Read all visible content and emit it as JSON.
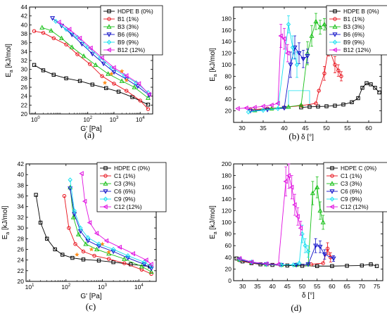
{
  "styles": {
    "HDPE": {
      "color": "#000000",
      "marker": "square"
    },
    "s1": {
      "color": "#e8101a",
      "marker": "circle"
    },
    "s3": {
      "color": "#18c018",
      "marker": "triangle-up"
    },
    "s6": {
      "color": "#1010c8",
      "marker": "triangle-down"
    },
    "s9": {
      "color": "#18e0f0",
      "marker": "diamond"
    },
    "s12": {
      "color": "#e010e0",
      "marker": "triangle-left"
    },
    "highlight": "#ff8c1a"
  },
  "chart_data": [
    {
      "id": "a",
      "panel_label": "(a)",
      "type": "scatter",
      "xscale": "log",
      "xlim": [
        0.6,
        30000
      ],
      "ylim": [
        20,
        44
      ],
      "xlabel": "G' [Pa]",
      "ylabel": "E",
      "ylabel_sub": "a",
      "ylabel_unit": " [kJ/mol]",
      "xticks": [
        1,
        100,
        1000,
        10000
      ],
      "xtick_labels": [
        "10",
        "10",
        "10",
        "10"
      ],
      "xtick_exps": [
        "0",
        "2",
        "3",
        "4"
      ],
      "yticks": [
        20,
        22,
        24,
        26,
        28,
        30,
        32,
        34,
        36,
        38,
        40,
        42,
        44
      ],
      "ytick_labels": [
        "20",
        "22",
        "24",
        "26",
        "28",
        "30",
        "32",
        "34",
        "36",
        "38",
        "40",
        "42",
        "44"
      ],
      "legend_pos": "top-right",
      "series": [
        {
          "name": "HDPE B (0%)",
          "style": "HDPE",
          "x": [
            0.9,
            2,
            5,
            15,
            50,
            150,
            500,
            1500,
            5000,
            20000
          ],
          "y": [
            31,
            29.8,
            28.8,
            28,
            27.4,
            26.6,
            25.8,
            25,
            23.8,
            22.1
          ]
        },
        {
          "name": "B1 (1%)",
          "style": "s1",
          "x": [
            0.9,
            2,
            5,
            15,
            40,
            120,
            350,
            1000,
            3000,
            10000,
            20000
          ],
          "y": [
            38.6,
            38.2,
            37,
            35.6,
            33.4,
            31.2,
            28.5,
            26.8,
            25.2,
            23,
            21.1
          ]
        },
        {
          "name": "B3 (3%)",
          "style": "s3",
          "x": [
            1.8,
            4,
            10,
            25,
            70,
            200,
            600,
            2000,
            6000,
            20000
          ],
          "y": [
            39.4,
            38.7,
            37,
            35,
            33,
            31,
            29,
            27.4,
            26,
            23.6
          ]
        },
        {
          "name": "B6 (6%)",
          "style": "s6",
          "x": [
            4.5,
            10,
            25,
            60,
            150,
            400,
            1000,
            3000,
            8000,
            22000
          ],
          "y": [
            41.5,
            39.8,
            37.8,
            35.7,
            33.5,
            31.3,
            29.4,
            27.8,
            26.2,
            24.2
          ]
        },
        {
          "name": "B9 (9%)",
          "style": "s9",
          "x": [
            6,
            15,
            40,
            100,
            300,
            800,
            2500,
            7000,
            20000
          ],
          "y": [
            40.8,
            39,
            37.2,
            35,
            32.6,
            30.4,
            28.6,
            27,
            24.8
          ]
        },
        {
          "name": "B12 (12%)",
          "style": "s12",
          "x": [
            8,
            20,
            50,
            130,
            350,
            1000,
            3000,
            9000,
            22000
          ],
          "y": [
            40.6,
            39,
            37,
            34.8,
            32.6,
            30.4,
            28.6,
            26.8,
            24.4
          ]
        }
      ],
      "highlights": {
        "x": [
          450,
          800,
          2000,
          3000
        ],
        "y": [
          27,
          29,
          29.6,
          27.6
        ]
      }
    },
    {
      "id": "b",
      "panel_label": "(b)",
      "type": "scatter",
      "xscale": "linear",
      "xlim": [
        28,
        63
      ],
      "ylim": [
        0,
        200
      ],
      "xlabel": "δ [°]",
      "ylabel": "E",
      "ylabel_sub": "a",
      "ylabel_unit": " [kJ/mol]",
      "xticks": [
        30,
        35,
        40,
        45,
        50,
        55,
        60
      ],
      "xtick_labels": [
        "30",
        "35",
        "40",
        "45",
        "50",
        "55",
        "60"
      ],
      "yticks": [
        20,
        40,
        60,
        80,
        100,
        120,
        140,
        160,
        180
      ],
      "ytick_labels": [
        "20",
        "40",
        "60",
        "80",
        "100",
        "120",
        "140",
        "160",
        "180"
      ],
      "legend_pos": "top-right",
      "series": [
        {
          "name": "HDPE B (0%)",
          "style": "HDPE",
          "x": [
            44,
            46,
            48,
            50,
            52,
            54,
            56,
            57.5,
            58.5,
            59.5,
            60.5,
            61.5,
            62.5
          ],
          "y": [
            26,
            27,
            27.5,
            28,
            29,
            31,
            35,
            42,
            60,
            68,
            66,
            60,
            52
          ],
          "err": [
            0,
            0,
            0,
            0,
            0,
            0,
            0,
            0,
            0,
            0,
            0,
            0,
            0
          ]
        },
        {
          "name": "B1 (1%)",
          "style": "s1",
          "x": [
            32,
            36,
            40,
            44,
            47.5,
            48.2,
            49.5,
            50.5,
            52,
            52.8,
            53.5
          ],
          "y": [
            22,
            24,
            26,
            29,
            33,
            55,
            85,
            130,
            100,
            90,
            80
          ],
          "err": [
            0,
            0,
            0,
            0,
            0,
            0,
            12,
            15,
            14,
            10,
            8
          ]
        },
        {
          "name": "B3 (3%)",
          "style": "s3",
          "x": [
            33,
            37,
            41,
            44,
            45.5,
            46.5,
            47.5,
            48.5,
            49.5,
            50.5
          ],
          "y": [
            21,
            24,
            27,
            30,
            120,
            150,
            175,
            165,
            170,
            150
          ],
          "err": [
            0,
            0,
            0,
            0,
            20,
            18,
            14,
            12,
            10,
            10
          ]
        },
        {
          "name": "B6 (6%)",
          "style": "s6",
          "x": [
            32,
            36,
            40,
            41.5,
            42.5,
            43.5,
            44.5,
            45.5
          ],
          "y": [
            20,
            22,
            25,
            100,
            130,
            120,
            110,
            115
          ],
          "err": [
            0,
            0,
            0,
            22,
            20,
            18,
            15,
            12
          ]
        },
        {
          "name": "B9 (9%)",
          "style": "s9",
          "x": [
            31.5,
            35,
            38.5,
            41,
            42,
            43
          ],
          "y": [
            18,
            21,
            24,
            170,
            130,
            100
          ],
          "err": [
            0,
            0,
            0,
            15,
            20,
            22
          ]
        },
        {
          "name": "B12 (12%)",
          "style": "s12",
          "x": [
            29,
            31,
            33,
            35,
            37,
            38.5,
            39.2,
            40,
            40.8
          ],
          "y": [
            24,
            25,
            26,
            28,
            30,
            33,
            150,
            145,
            120
          ],
          "err": [
            0,
            0,
            0,
            0,
            0,
            0,
            20,
            18,
            15
          ]
        }
      ],
      "connectors": [
        {
          "style": "s9",
          "x": [
            38.5,
            41,
            41,
            46,
            46
          ],
          "y": [
            24,
            24,
            55,
            55,
            30
          ]
        }
      ]
    },
    {
      "id": "c",
      "panel_label": "(c)",
      "type": "scatter",
      "xscale": "log",
      "xlim": [
        8,
        30000
      ],
      "ylim": [
        20,
        42
      ],
      "xlabel": "G' [Pa]",
      "ylabel": "E",
      "ylabel_sub": "a",
      "ylabel_unit": " [kJ/mol]",
      "xticks": [
        10,
        100,
        1000,
        10000
      ],
      "xtick_labels": [
        "10",
        "10",
        "10",
        "10"
      ],
      "xtick_exps": [
        "1",
        "2",
        "3",
        "4"
      ],
      "yticks": [
        20,
        22,
        24,
        26,
        28,
        30,
        32,
        34,
        36,
        38,
        40,
        42
      ],
      "ytick_labels": [
        "20",
        "22",
        "24",
        "26",
        "28",
        "30",
        "32",
        "34",
        "36",
        "38",
        "40",
        "42"
      ],
      "legend_pos": "top-right",
      "series": [
        {
          "name": "HDPE C (0%)",
          "style": "HDPE",
          "x": [
            15,
            20,
            30,
            50,
            80,
            150,
            300,
            800,
            2000,
            6000,
            20000
          ],
          "y": [
            36.2,
            31,
            28,
            26,
            25,
            24.4,
            24.1,
            23.9,
            23.6,
            23.2,
            22.8
          ]
        },
        {
          "name": "C1 (1%)",
          "style": "s1",
          "x": [
            90,
            120,
            180,
            300,
            600,
            1500,
            4000,
            12000,
            22000
          ],
          "y": [
            36,
            30,
            27,
            25.6,
            24.8,
            24.2,
            23.4,
            22.2,
            21.4
          ]
        },
        {
          "name": "C3 (3%)",
          "style": "s3",
          "x": [
            130,
            160,
            220,
            350,
            700,
            1500,
            4000,
            12000,
            22000
          ],
          "y": [
            37.6,
            32,
            28.8,
            27,
            26,
            25.2,
            24.2,
            22.8,
            21.8
          ]
        },
        {
          "name": "C6 (6%)",
          "style": "s6",
          "x": [
            130,
            170,
            250,
            400,
            800,
            2000,
            5000,
            14000,
            22000
          ],
          "y": [
            37.4,
            32.6,
            29.4,
            27.6,
            26.6,
            25.6,
            24.4,
            23.2,
            22.4
          ]
        },
        {
          "name": "C9 (9%)",
          "style": "s9",
          "x": [
            130,
            170,
            250,
            400,
            800,
            2000,
            5000,
            14000,
            22000
          ],
          "y": [
            39,
            33.2,
            30,
            28.2,
            27,
            26,
            24.8,
            23.6,
            22.8
          ]
        },
        {
          "name": "C12 (12%)",
          "style": "s12",
          "x": [
            270,
            330,
            450,
            700,
            1300,
            3000,
            7000,
            16000,
            22000
          ],
          "y": [
            40.2,
            35,
            31,
            29,
            27.6,
            26.4,
            25.2,
            24,
            23.2
          ]
        }
      ],
      "highlights": {
        "x": [
          200,
          500,
          1000,
          1500
        ],
        "y": [
          25,
          26,
          27,
          25.5
        ]
      }
    },
    {
      "id": "d",
      "panel_label": "(d)",
      "type": "scatter",
      "xscale": "linear",
      "xlim": [
        27,
        77
      ],
      "ylim": [
        0,
        200
      ],
      "xlabel": "δ [°]",
      "ylabel": "E",
      "ylabel_sub": "a",
      "ylabel_unit": " [kJ/mol]",
      "xticks": [
        30,
        35,
        40,
        45,
        50,
        55,
        60,
        65,
        70,
        75
      ],
      "xtick_labels": [
        "30",
        "35",
        "40",
        "45",
        "50",
        "55",
        "60",
        "65",
        "70",
        "75"
      ],
      "yticks": [
        0,
        20,
        40,
        60,
        80,
        100,
        120,
        140,
        160,
        180,
        200
      ],
      "ytick_labels": [
        "0",
        "20",
        "40",
        "60",
        "80",
        "100",
        "120",
        "140",
        "160",
        "180",
        "200"
      ],
      "legend_pos": "top-right",
      "series": [
        {
          "name": "HDPE C (0%)",
          "style": "HDPE",
          "x": [
            28,
            30,
            33,
            36,
            40,
            45,
            50,
            55,
            60,
            65,
            70,
            73,
            75
          ],
          "y": [
            38,
            33,
            30,
            28,
            27,
            26,
            25.5,
            25,
            25,
            25.5,
            26,
            28,
            25
          ],
          "err": [
            0,
            0,
            0,
            0,
            0,
            0,
            0,
            0,
            0,
            0,
            0,
            0,
            0
          ]
        },
        {
          "name": "C1 (1%)",
          "style": "s1",
          "x": [
            29,
            33,
            38,
            43,
            48,
            53,
            57,
            58.5,
            59.5
          ],
          "y": [
            35,
            30,
            28,
            27,
            27,
            28,
            30,
            55,
            40
          ],
          "err": [
            0,
            0,
            0,
            0,
            0,
            0,
            0,
            10,
            8
          ]
        },
        {
          "name": "C3 (3%)",
          "style": "s3",
          "x": [
            29,
            33,
            38,
            43,
            48,
            52,
            53.5,
            55,
            56,
            57
          ],
          "y": [
            36,
            31,
            28,
            27,
            27,
            28,
            150,
            160,
            120,
            100
          ],
          "err": [
            0,
            0,
            0,
            0,
            0,
            0,
            20,
            18,
            15,
            12
          ]
        },
        {
          "name": "C6 (6%)",
          "style": "s6",
          "x": [
            29,
            33,
            38,
            43,
            48,
            52,
            54.5,
            56,
            57.5,
            60.5
          ],
          "y": [
            36,
            31,
            28,
            27,
            27,
            28,
            60,
            58,
            45,
            38
          ],
          "err": [
            0,
            0,
            0,
            0,
            0,
            0,
            12,
            10,
            8,
            5
          ]
        },
        {
          "name": "C9 (9%)",
          "style": "s9",
          "x": [
            29,
            33,
            38,
            43,
            47,
            49,
            50,
            51,
            52
          ],
          "y": [
            37,
            32,
            28.5,
            27,
            27,
            30,
            80,
            60,
            50
          ],
          "err": [
            0,
            0,
            0,
            0,
            0,
            0,
            15,
            12,
            10
          ]
        },
        {
          "name": "C12 (12%)",
          "style": "s12",
          "x": [
            29,
            33,
            38,
            42,
            44.5,
            45.5,
            46.5,
            47.5,
            48.5,
            49.5
          ],
          "y": [
            38,
            32,
            29,
            28,
            170,
            180,
            160,
            130,
            110,
            90
          ],
          "err": [
            0,
            0,
            0,
            0,
            25,
            22,
            20,
            18,
            15,
            12
          ]
        }
      ]
    }
  ]
}
